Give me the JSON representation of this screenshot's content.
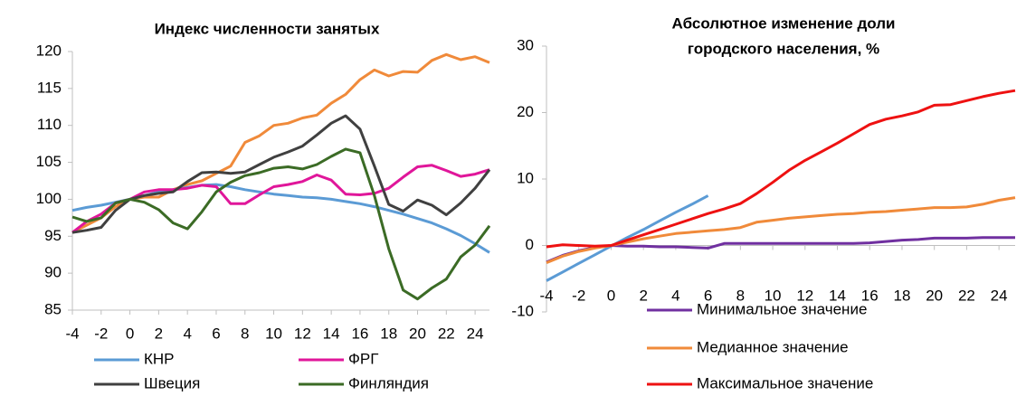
{
  "chart_data": [
    {
      "type": "line",
      "title": "Индекс численности занятых",
      "x": [
        -4,
        -3,
        -2,
        -1,
        0,
        1,
        2,
        3,
        4,
        5,
        6,
        7,
        8,
        9,
        10,
        11,
        12,
        13,
        14,
        15,
        16,
        17,
        18,
        19,
        20,
        21,
        22,
        23,
        24,
        25
      ],
      "xlim": [
        -4,
        25
      ],
      "xticks": [
        -4,
        -2,
        0,
        2,
        4,
        6,
        8,
        10,
        12,
        14,
        16,
        18,
        20,
        22,
        24
      ],
      "ylim": [
        85,
        120
      ],
      "yticks": [
        85,
        90,
        95,
        100,
        105,
        110,
        115,
        120
      ],
      "series": [
        {
          "color": "#f08a3a",
          "values": [
            95.5,
            96.5,
            97.5,
            99,
            100,
            100.3,
            100.3,
            101.3,
            102,
            102.5,
            103.5,
            104.5,
            107.7,
            108.6,
            110,
            110.3,
            111,
            111.4,
            113,
            114.2,
            116.2,
            117.5,
            116.7,
            117.3,
            117.2,
            118.8,
            119.6,
            118.9,
            119.3,
            118.5
          ]
        },
        {
          "name": "КНР",
          "color": "#5b9bd5",
          "values": [
            98.5,
            98.9,
            99.2,
            99.6,
            100,
            100.5,
            101,
            101.3,
            101.6,
            101.9,
            102,
            101.7,
            101.3,
            101,
            100.7,
            100.5,
            100.3,
            100.2,
            100,
            99.7,
            99.4,
            99,
            98.5,
            98,
            97.4,
            96.8,
            96,
            95.1,
            94,
            92.8
          ]
        },
        {
          "name": "ФРГ",
          "color": "#e0169a",
          "values": [
            95.5,
            97,
            98,
            99.5,
            100,
            101,
            101.3,
            101.3,
            101.5,
            101.9,
            101.7,
            99.4,
            99.4,
            100.6,
            101.7,
            102,
            102.4,
            103.3,
            102.6,
            100.7,
            100.6,
            100.8,
            101.5,
            103,
            104.4,
            104.6,
            103.9,
            103.1,
            103.4,
            104
          ]
        },
        {
          "name": "Швеция",
          "color": "#404040",
          "values": [
            95.5,
            95.8,
            96.2,
            98.5,
            100,
            100.5,
            100.8,
            101,
            102.4,
            103.6,
            103.7,
            103.5,
            103.7,
            104.7,
            105.7,
            106.4,
            107.2,
            108.7,
            110.3,
            111.3,
            109.5,
            104.5,
            99.3,
            98.4,
            99.9,
            99.2,
            97.9,
            99.5,
            101.5,
            104
          ]
        },
        {
          "name": "Финляндия",
          "color": "#3b6b25",
          "values": [
            97.6,
            97,
            97.5,
            99.5,
            100,
            99.6,
            98.6,
            96.8,
            96,
            98.3,
            101,
            102.3,
            103.2,
            103.6,
            104.2,
            104.4,
            104.1,
            104.7,
            105.8,
            106.8,
            106.3,
            100.5,
            93.3,
            87.7,
            86.5,
            88,
            89.2,
            92.2,
            93.8,
            96.4
          ]
        }
      ]
    },
    {
      "type": "line",
      "title": [
        "Абсолютное изменение доли",
        "городского населения, %"
      ],
      "x": [
        -4,
        -3,
        -2,
        -1,
        0,
        1,
        2,
        3,
        4,
        5,
        6,
        7,
        8,
        9,
        10,
        11,
        12,
        13,
        14,
        15,
        16,
        17,
        18,
        19,
        20,
        21,
        22,
        23,
        24,
        25
      ],
      "xlim": [
        -4,
        25
      ],
      "xticks": [
        -4,
        -2,
        0,
        2,
        4,
        6,
        8,
        10,
        12,
        14,
        16,
        18,
        20,
        22,
        24
      ],
      "ylim": [
        -10,
        30
      ],
      "yticks": [
        -10,
        0,
        10,
        20,
        30
      ],
      "series": [
        {
          "color": "#5b9bd5",
          "values": [
            -5.3,
            -4,
            -2.7,
            -1.4,
            -0.1,
            1.2,
            2.4,
            3.7,
            5,
            6.2,
            7.5,
            null,
            null,
            null,
            null,
            null,
            null,
            null,
            null,
            null,
            null,
            null,
            null,
            null,
            null,
            null,
            null,
            null,
            null,
            null
          ]
        },
        {
          "name": "Минимальное значение",
          "color": "#7030a0",
          "values": [
            -2.5,
            -1.5,
            -0.8,
            -0.3,
            0,
            -0.1,
            -0.1,
            -0.2,
            -0.2,
            -0.3,
            -0.4,
            0.3,
            0.3,
            0.3,
            0.3,
            0.3,
            0.3,
            0.3,
            0.3,
            0.3,
            0.4,
            0.6,
            0.8,
            0.9,
            1.1,
            1.1,
            1.1,
            1.2,
            1.2,
            1.2
          ]
        },
        {
          "name": "Медианное значение",
          "color": "#f08a3a",
          "values": [
            -2.6,
            -1.6,
            -0.9,
            -0.4,
            0,
            0.5,
            1,
            1.4,
            1.8,
            2,
            2.2,
            2.4,
            2.7,
            3.5,
            3.8,
            4.1,
            4.3,
            4.5,
            4.7,
            4.8,
            5,
            5.1,
            5.3,
            5.5,
            5.7,
            5.7,
            5.8,
            6.2,
            6.8,
            7.2
          ]
        },
        {
          "name": "Максимальное значение",
          "color": "#ee1111",
          "values": [
            -0.2,
            0.1,
            0,
            -0.1,
            0,
            0.8,
            1.6,
            2.4,
            3.2,
            4,
            4.8,
            5.5,
            6.3,
            7.8,
            9.5,
            11.3,
            12.8,
            14.1,
            15.4,
            16.8,
            18.2,
            19,
            19.5,
            20.1,
            21.1,
            21.2,
            21.8,
            22.4,
            22.9,
            23.3
          ]
        }
      ]
    }
  ]
}
